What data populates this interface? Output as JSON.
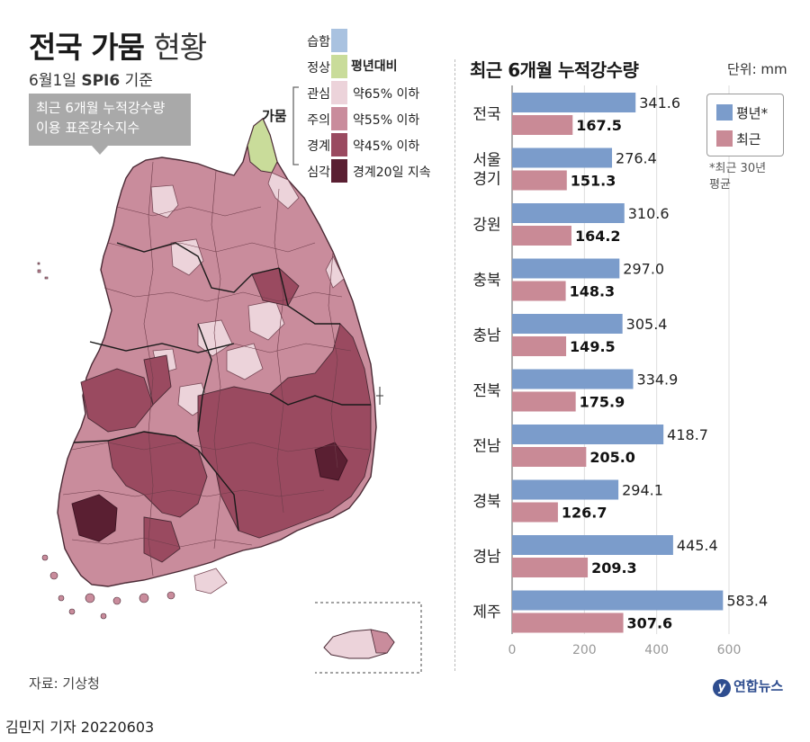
{
  "header": {
    "title_bold": "전국 가뭄",
    "title_light": "현황",
    "subtitle_pre": "6월1일",
    "subtitle_bold": "SPI6",
    "subtitle_post": "기준",
    "note_line1": "최근 6개월 누적강수량",
    "note_line2": "이용 표준강수지수"
  },
  "map_legend": {
    "header": "평년대비",
    "gamum_label": "가뭄",
    "items": [
      {
        "label": "습함",
        "desc": "",
        "color": "#a9c2e0"
      },
      {
        "label": "정상",
        "desc": "",
        "color": "#c9dc9a"
      },
      {
        "label": "관심",
        "desc": "약65% 이하",
        "color": "#ecd3da"
      },
      {
        "label": "주의",
        "desc": "약55% 이하",
        "color": "#c98c9c"
      },
      {
        "label": "경계",
        "desc": "약45% 이하",
        "color": "#9a4a60"
      },
      {
        "label": "심각",
        "desc": "경계20일 지속",
        "color": "#5a1f32"
      }
    ]
  },
  "chart_legend": {
    "avg_label": "평년*",
    "recent_label": "최근",
    "note_line1": "*최근 30년",
    "note_line2": "평균"
  },
  "footer": {
    "source": "자료: 기상청",
    "credit": "김민지 기자  20220603",
    "logo": "연합뉴스",
    "logo_mark": "y"
  },
  "chart_data": {
    "type": "bar",
    "orientation": "horizontal",
    "title": "최근 6개월 누적강수량",
    "unit": "단위: mm",
    "categories": [
      [
        "전국"
      ],
      [
        "서울",
        "경기"
      ],
      [
        "강원"
      ],
      [
        "충북"
      ],
      [
        "충남"
      ],
      [
        "전북"
      ],
      [
        "전남"
      ],
      [
        "경북"
      ],
      [
        "경남"
      ],
      [
        "제주"
      ]
    ],
    "series": [
      {
        "name": "평년*",
        "color": "#7b9ccb",
        "values": [
          341.6,
          276.4,
          310.6,
          297.0,
          305.4,
          334.9,
          418.7,
          294.1,
          445.4,
          583.4
        ],
        "labels": [
          "341.6",
          "276.4",
          "310.6",
          "297.0",
          "305.4",
          "334.9",
          "418.7",
          "294.1",
          "445.4",
          "583.4"
        ]
      },
      {
        "name": "최근",
        "color": "#c98a96",
        "values": [
          167.5,
          151.3,
          164.2,
          148.3,
          149.5,
          175.9,
          205.0,
          126.7,
          209.3,
          307.6
        ],
        "labels": [
          "167.5",
          "151.3",
          "164.2",
          "148.3",
          "149.5",
          "175.9",
          "205.0",
          "126.7",
          "209.3",
          "307.6"
        ]
      }
    ],
    "xlim": [
      0,
      600
    ],
    "xticks": [
      "0",
      "200",
      "400",
      "600"
    ],
    "grid": true
  }
}
